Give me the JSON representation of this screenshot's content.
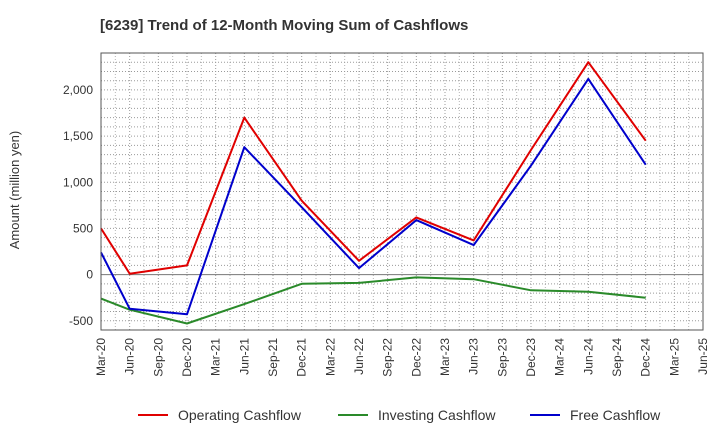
{
  "chart_data": {
    "type": "line",
    "title": "[6239]  Trend of 12-Month Moving Sum of Cashflows",
    "ylabel": "Amount (million yen)",
    "xlabel": "",
    "ylim": [
      -600,
      2400
    ],
    "yticks": [
      -500,
      0,
      500,
      1000,
      1500,
      2000
    ],
    "ytick_labels": [
      "-500",
      "0",
      "500",
      "1,000",
      "1,500",
      "2,000"
    ],
    "categories": [
      "Mar-20",
      "Jun-20",
      "Sep-20",
      "Dec-20",
      "Mar-21",
      "Jun-21",
      "Sep-21",
      "Dec-21",
      "Mar-22",
      "Jun-22",
      "Sep-22",
      "Dec-22",
      "Mar-23",
      "Jun-23",
      "Sep-23",
      "Dec-23",
      "Mar-24",
      "Jun-24",
      "Sep-24",
      "Dec-24",
      "Mar-25",
      "Jun-25"
    ],
    "grid": true,
    "legend_position": "bottom",
    "series": [
      {
        "name": "Operating Cashflow",
        "color": "#e00000",
        "values": [
          500,
          10,
          null,
          100,
          null,
          1700,
          null,
          800,
          null,
          150,
          null,
          620,
          null,
          370,
          null,
          1350,
          null,
          2300,
          null,
          1450,
          null,
          null
        ]
      },
      {
        "name": "Investing Cashflow",
        "color": "#2a8a2a",
        "values": [
          -260,
          -380,
          null,
          -530,
          null,
          -320,
          null,
          -100,
          null,
          -90,
          null,
          -30,
          null,
          -50,
          null,
          -170,
          null,
          -185,
          null,
          -250,
          null,
          null
        ]
      },
      {
        "name": "Free Cashflow",
        "color": "#0000cc",
        "values": [
          240,
          -370,
          null,
          -430,
          null,
          1380,
          null,
          730,
          null,
          70,
          null,
          590,
          null,
          320,
          null,
          1180,
          null,
          2120,
          null,
          1190,
          null,
          null
        ]
      }
    ]
  }
}
